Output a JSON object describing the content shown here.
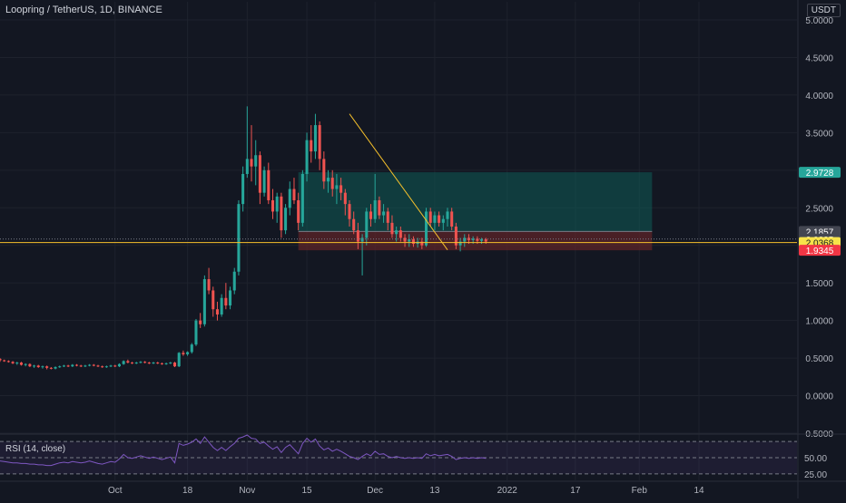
{
  "header": {
    "title": "Loopring / TetherUS, 1D, BINANCE",
    "currency": "USDT"
  },
  "rsi": {
    "title": "RSI (14, close)",
    "levels": [
      50.0,
      25.0
    ],
    "level_labels": [
      "50.00",
      "25.00"
    ]
  },
  "price_labels": [
    {
      "text": "2.9728",
      "value": 2.9728,
      "color": "#26a69a"
    },
    {
      "text": "2.1857",
      "value": 2.1857,
      "color": "#434651"
    },
    {
      "text": "2.0835",
      "value": 2.0835,
      "color": "#434651"
    },
    {
      "text": "2.0368",
      "value": 2.0368,
      "color": "#f7e34a"
    },
    {
      "text": "1.9345",
      "value": 1.9345,
      "color": "#f23645"
    }
  ],
  "chart_data": {
    "type": "candlestick",
    "title": "Loopring / TetherUS, 1D, BINANCE",
    "y_ticks": [
      "5.0000",
      "4.5000",
      "4.0000",
      "3.5000",
      "3.0000",
      "2.5000",
      "2.0000",
      "1.5000",
      "1.0000",
      "0.5000",
      "0.0000",
      "-0.5000"
    ],
    "ylim": [
      -0.5,
      5.0
    ],
    "x_ticks": [
      "Oct",
      "18",
      "Nov",
      "15",
      "Dec",
      "13",
      "2022",
      "17",
      "Feb",
      "14"
    ],
    "x_tick_days": [
      0,
      17,
      31,
      45,
      61,
      75,
      92,
      108,
      123,
      137
    ],
    "x_range_days": [
      -27,
      160
    ],
    "series": [
      {
        "type": "ohlc",
        "start_day": -27,
        "ohlc": [
          [
            0.49,
            0.5,
            0.45,
            0.47
          ],
          [
            0.47,
            0.48,
            0.45,
            0.46
          ],
          [
            0.46,
            0.47,
            0.44,
            0.45
          ],
          [
            0.45,
            0.46,
            0.42,
            0.43
          ],
          [
            0.43,
            0.45,
            0.41,
            0.44
          ],
          [
            0.44,
            0.45,
            0.4,
            0.41
          ],
          [
            0.41,
            0.43,
            0.39,
            0.42
          ],
          [
            0.42,
            0.43,
            0.38,
            0.39
          ],
          [
            0.39,
            0.41,
            0.37,
            0.4
          ],
          [
            0.4,
            0.41,
            0.37,
            0.38
          ],
          [
            0.38,
            0.4,
            0.36,
            0.39
          ],
          [
            0.39,
            0.4,
            0.35,
            0.37
          ],
          [
            0.37,
            0.38,
            0.35,
            0.36
          ],
          [
            0.36,
            0.39,
            0.35,
            0.38
          ],
          [
            0.38,
            0.4,
            0.37,
            0.39
          ],
          [
            0.39,
            0.41,
            0.38,
            0.4
          ],
          [
            0.4,
            0.41,
            0.38,
            0.39
          ],
          [
            0.39,
            0.42,
            0.38,
            0.41
          ],
          [
            0.41,
            0.42,
            0.39,
            0.4
          ],
          [
            0.4,
            0.41,
            0.38,
            0.39
          ],
          [
            0.39,
            0.41,
            0.38,
            0.4
          ],
          [
            0.4,
            0.42,
            0.39,
            0.41
          ],
          [
            0.41,
            0.42,
            0.39,
            0.4
          ],
          [
            0.4,
            0.41,
            0.38,
            0.39
          ],
          [
            0.39,
            0.4,
            0.37,
            0.38
          ],
          [
            0.38,
            0.4,
            0.37,
            0.39
          ],
          [
            0.39,
            0.41,
            0.38,
            0.4
          ],
          [
            0.4,
            0.41,
            0.38,
            0.39
          ],
          [
            0.39,
            0.43,
            0.38,
            0.42
          ],
          [
            0.42,
            0.47,
            0.41,
            0.46
          ],
          [
            0.46,
            0.48,
            0.43,
            0.44
          ],
          [
            0.44,
            0.45,
            0.42,
            0.43
          ],
          [
            0.43,
            0.45,
            0.42,
            0.44
          ],
          [
            0.44,
            0.46,
            0.43,
            0.45
          ],
          [
            0.45,
            0.46,
            0.43,
            0.44
          ],
          [
            0.44,
            0.45,
            0.42,
            0.43
          ],
          [
            0.43,
            0.45,
            0.42,
            0.44
          ],
          [
            0.44,
            0.45,
            0.42,
            0.43
          ],
          [
            0.43,
            0.44,
            0.41,
            0.42
          ],
          [
            0.42,
            0.44,
            0.41,
            0.43
          ],
          [
            0.43,
            0.45,
            0.42,
            0.44
          ],
          [
            0.44,
            0.45,
            0.38,
            0.39
          ],
          [
            0.39,
            0.58,
            0.38,
            0.57
          ],
          [
            0.57,
            0.6,
            0.53,
            0.55
          ],
          [
            0.55,
            0.59,
            0.53,
            0.58
          ],
          [
            0.58,
            0.7,
            0.56,
            0.68
          ],
          [
            0.68,
            1.02,
            0.66,
            1.0
          ],
          [
            1.0,
            1.1,
            0.9,
            0.95
          ],
          [
            0.95,
            1.6,
            0.92,
            1.55
          ],
          [
            1.55,
            1.7,
            1.35,
            1.4
          ],
          [
            1.4,
            1.45,
            1.05,
            1.15
          ],
          [
            1.15,
            1.25,
            1.0,
            1.08
          ],
          [
            1.08,
            1.35,
            1.05,
            1.3
          ],
          [
            1.3,
            1.5,
            1.15,
            1.2
          ],
          [
            1.2,
            1.45,
            1.15,
            1.4
          ],
          [
            1.4,
            1.7,
            1.35,
            1.65
          ],
          [
            1.65,
            2.6,
            1.6,
            2.55
          ],
          [
            2.55,
            3.05,
            2.45,
            2.95
          ],
          [
            2.95,
            3.85,
            2.9,
            3.15
          ],
          [
            3.15,
            3.6,
            2.85,
            3.05
          ],
          [
            3.05,
            3.4,
            2.8,
            3.2
          ],
          [
            3.2,
            3.25,
            2.55,
            2.7
          ],
          [
            2.7,
            3.05,
            2.65,
            3.0
          ],
          [
            3.0,
            3.1,
            2.55,
            2.6
          ],
          [
            2.6,
            2.75,
            2.35,
            2.45
          ],
          [
            2.45,
            2.7,
            2.3,
            2.65
          ],
          [
            2.65,
            2.7,
            2.1,
            2.2
          ],
          [
            2.2,
            2.55,
            2.15,
            2.5
          ],
          [
            2.5,
            2.85,
            2.4,
            2.75
          ],
          [
            2.75,
            2.9,
            2.55,
            2.6
          ],
          [
            2.6,
            2.7,
            2.2,
            2.3
          ],
          [
            2.3,
            3.0,
            2.25,
            2.95
          ],
          [
            2.95,
            3.5,
            2.85,
            3.4
          ],
          [
            3.4,
            3.6,
            3.1,
            3.25
          ],
          [
            3.25,
            3.75,
            3.15,
            3.6
          ],
          [
            3.6,
            3.65,
            3.0,
            3.15
          ],
          [
            3.15,
            3.25,
            2.75,
            2.85
          ],
          [
            2.85,
            3.0,
            2.7,
            2.9
          ],
          [
            2.9,
            3.0,
            2.65,
            2.75
          ],
          [
            2.75,
            2.95,
            2.55,
            2.8
          ],
          [
            2.8,
            2.9,
            2.6,
            2.7
          ],
          [
            2.7,
            2.75,
            2.4,
            2.55
          ],
          [
            2.55,
            2.6,
            2.25,
            2.35
          ],
          [
            2.35,
            2.45,
            2.15,
            2.2
          ],
          [
            2.2,
            2.3,
            1.95,
            2.05
          ],
          [
            2.05,
            2.15,
            1.6,
            2.1
          ],
          [
            2.1,
            2.5,
            2.0,
            2.45
          ],
          [
            2.45,
            2.55,
            2.25,
            2.35
          ],
          [
            2.35,
            2.95,
            2.3,
            2.6
          ],
          [
            2.6,
            2.65,
            2.35,
            2.4
          ],
          [
            2.4,
            2.55,
            2.3,
            2.45
          ],
          [
            2.45,
            2.5,
            2.2,
            2.3
          ],
          [
            2.3,
            2.4,
            2.1,
            2.15
          ],
          [
            2.15,
            2.25,
            2.05,
            2.2
          ],
          [
            2.2,
            2.25,
            2.05,
            2.1
          ],
          [
            2.1,
            2.15,
            1.98,
            2.05
          ],
          [
            2.05,
            2.15,
            1.98,
            2.08
          ],
          [
            2.08,
            2.12,
            1.98,
            2.02
          ],
          [
            2.02,
            2.1,
            1.97,
            2.05
          ],
          [
            2.05,
            2.1,
            1.95,
            2.0
          ],
          [
            2.0,
            2.5,
            1.98,
            2.45
          ],
          [
            2.45,
            2.5,
            2.25,
            2.3
          ],
          [
            2.3,
            2.45,
            2.2,
            2.4
          ],
          [
            2.4,
            2.45,
            2.25,
            2.3
          ],
          [
            2.3,
            2.4,
            2.2,
            2.35
          ],
          [
            2.35,
            2.5,
            2.25,
            2.45
          ],
          [
            2.45,
            2.5,
            2.2,
            2.25
          ],
          [
            2.25,
            2.3,
            1.95,
            2.0
          ],
          [
            2.0,
            2.1,
            1.92,
            2.05
          ],
          [
            2.05,
            2.15,
            1.98,
            2.1
          ],
          [
            2.1,
            2.15,
            2.02,
            2.07
          ],
          [
            2.07,
            2.12,
            2.02,
            2.09
          ],
          [
            2.09,
            2.12,
            2.02,
            2.06
          ],
          [
            2.06,
            2.1,
            2.02,
            2.08
          ],
          [
            2.08,
            2.1,
            2.02,
            2.05
          ]
        ]
      }
    ],
    "drawings": [
      {
        "type": "trendline",
        "from": [
          -3,
          3.75
        ],
        "to": [
          20,
          1.94
        ],
        "color": "#f7c12b",
        "origin_day": 58
      },
      {
        "type": "hline",
        "value": 2.0368,
        "color": "#f7c12b"
      },
      {
        "type": "hline",
        "value": 2.0835,
        "color": "#787b86",
        "style": "dotted"
      },
      {
        "type": "long_position",
        "start_day": 43,
        "end_day": 126,
        "entry": 2.1857,
        "target": 2.9728,
        "stop": 1.9345,
        "profit_color": "#0f5b56",
        "loss_color": "#5c2428"
      }
    ],
    "rsi": {
      "name": "RSI (14, close)",
      "levels": [
        75,
        50,
        25
      ],
      "ylim": [
        15,
        85
      ],
      "values": [
        45,
        44,
        43,
        42,
        42,
        41,
        41,
        40,
        40,
        39,
        39,
        38,
        38,
        40,
        42,
        43,
        42,
        44,
        43,
        42,
        43,
        45,
        43,
        41,
        40,
        42,
        44,
        43,
        48,
        55,
        50,
        49,
        51,
        53,
        51,
        49,
        51,
        49,
        47,
        49,
        51,
        42,
        72,
        69,
        71,
        74,
        79,
        72,
        82,
        74,
        66,
        61,
        66,
        61,
        67,
        72,
        80,
        82,
        85,
        80,
        79,
        72,
        74,
        68,
        63,
        67,
        58,
        66,
        70,
        63,
        56,
        72,
        80,
        74,
        79,
        68,
        62,
        65,
        60,
        63,
        60,
        56,
        52,
        50,
        47,
        52,
        56,
        53,
        60,
        55,
        56,
        52,
        50,
        52,
        50,
        49,
        50,
        49,
        50,
        49,
        56,
        53,
        55,
        53,
        54,
        55,
        52,
        47,
        49,
        50,
        49,
        50,
        49,
        50,
        49
      ]
    }
  }
}
